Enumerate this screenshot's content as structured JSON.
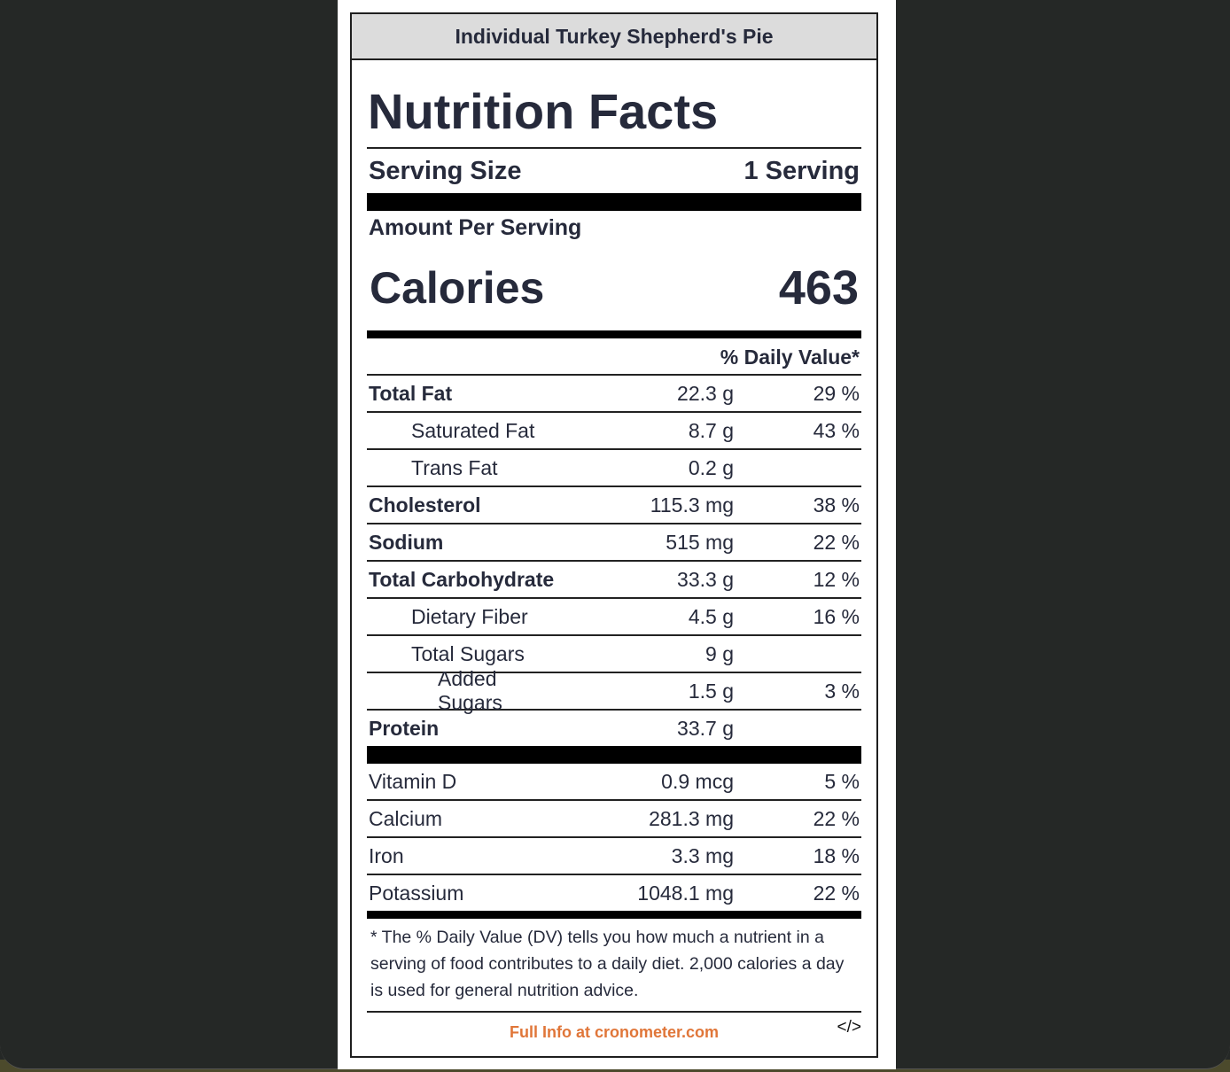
{
  "label": {
    "title": "Individual Turkey Shepherd's Pie",
    "heading": "Nutrition Facts",
    "serving_size_label": "Serving Size",
    "serving_size_value": "1 Serving",
    "amount_per_serving": "Amount Per Serving",
    "calories_label": "Calories",
    "calories_value": "463",
    "daily_value_header": "% Daily Value*"
  },
  "nutrients": [
    {
      "name": "Total Fat",
      "amount": "22.3 g",
      "dv": "29 %"
    },
    {
      "name": "Saturated Fat",
      "amount": "8.7 g",
      "dv": "43 %"
    },
    {
      "name": "Trans Fat",
      "amount": "0.2 g",
      "dv": ""
    },
    {
      "name": "Cholesterol",
      "amount": "115.3 mg",
      "dv": "38 %"
    },
    {
      "name": "Sodium",
      "amount": "515 mg",
      "dv": "22 %"
    },
    {
      "name": "Total Carbohydrate",
      "amount": "33.3 g",
      "dv": "12 %"
    },
    {
      "name": "Dietary Fiber",
      "amount": "4.5 g",
      "dv": "16 %"
    },
    {
      "name": "Total Sugars",
      "amount": "9 g",
      "dv": ""
    },
    {
      "name": "Added Sugars",
      "amount": "1.5 g",
      "dv": "3 %"
    },
    {
      "name": "Protein",
      "amount": "33.7 g",
      "dv": ""
    }
  ],
  "vitamins": [
    {
      "name": "Vitamin D",
      "amount": "0.9 mcg",
      "dv": "5 %"
    },
    {
      "name": "Calcium",
      "amount": "281.3 mg",
      "dv": "22 %"
    },
    {
      "name": "Iron",
      "amount": "3.3 mg",
      "dv": "18 %"
    },
    {
      "name": "Potassium",
      "amount": "1048.1 mg",
      "dv": "22 %"
    }
  ],
  "footnote": "* The % Daily Value (DV) tells you how much a nutrient in a serving of food contributes to a daily diet. 2,000 calories a day is used for general nutrition advice.",
  "footer": {
    "link_text": "Full Info at cronometer.com",
    "embed_code_glyph": "</>"
  },
  "colors": {
    "link": "#e07639",
    "text": "#262a3b",
    "background": "#252826"
  }
}
